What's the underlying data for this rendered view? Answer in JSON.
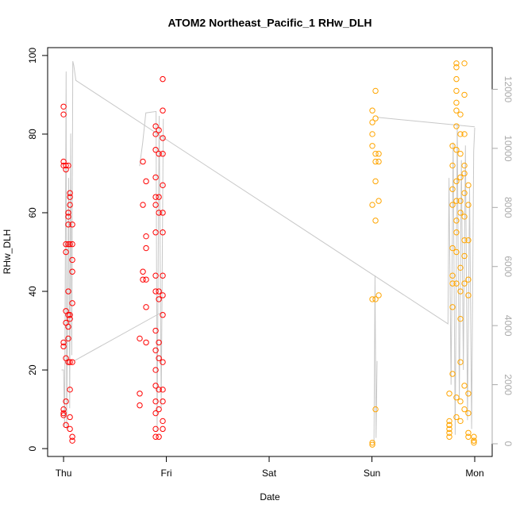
{
  "chart_data": {
    "type": "scatter",
    "title": "ATOM2 Northeast_Pacific_1 RHw_DLH",
    "x_label": "Date",
    "y_label": "RHw_DLH",
    "xlim": [
      -0.155,
      4.17
    ],
    "xticks": [
      {
        "value": 0,
        "label": "Thu"
      },
      {
        "value": 1,
        "label": "Fri"
      },
      {
        "value": 2,
        "label": "Sat"
      },
      {
        "value": 3,
        "label": "Sun"
      },
      {
        "value": 4,
        "label": "Mon"
      }
    ],
    "ylim": [
      -2,
      102
    ],
    "yticks": [
      0,
      20,
      40,
      60,
      80,
      100
    ],
    "y2lim": [
      -430,
      13410
    ],
    "y2ticks": [
      0,
      2000,
      4000,
      6000,
      8000,
      10000,
      12000
    ],
    "series": [
      {
        "color": "#ff0000",
        "x": [
          0,
          0,
          0,
          0,
          0,
          0,
          0,
          0,
          0,
          0.023,
          0.023,
          0.023,
          0.023,
          0.023,
          0.023,
          0.023,
          0.023,
          0.023,
          0.046,
          0.046,
          0.046,
          0.046,
          0.046,
          0.046,
          0.046,
          0.046,
          0.046,
          0.046,
          0.062,
          0.062,
          0.062,
          0.062,
          0.062,
          0.062,
          0.062,
          0.062,
          0.062,
          0.062,
          0.085,
          0.085,
          0.085,
          0.085,
          0.085,
          0.085,
          0.085,
          0.085,
          0.741,
          0.741,
          0.741,
          0.772,
          0.772,
          0.772,
          0.772,
          0.803,
          0.803,
          0.803,
          0.803,
          0.803,
          0.803,
          0.896,
          0.896,
          0.896,
          0.896,
          0.896,
          0.896,
          0.896,
          0.896,
          0.896,
          0.896,
          0.896,
          0.896,
          0.896,
          0.896,
          0.896,
          0.896,
          0.896,
          0.927,
          0.927,
          0.927,
          0.927,
          0.927,
          0.927,
          0.927,
          0.927,
          0.927,
          0.927,
          0.927,
          0.965,
          0.965,
          0.965,
          0.965,
          0.965,
          0.965,
          0.965,
          0.965,
          0.965,
          0.965,
          0.965,
          0.965,
          0.965,
          0.965,
          0.965
        ],
        "values": [
          87,
          85,
          73,
          72,
          9,
          8.5,
          10,
          26,
          27,
          72,
          71,
          52,
          50,
          35,
          32,
          23,
          12,
          6,
          72,
          60,
          59,
          57,
          52,
          40,
          34,
          31,
          28,
          22,
          65,
          64,
          62,
          52,
          34,
          33,
          22,
          15,
          8,
          5,
          57,
          52,
          48,
          45,
          37,
          22,
          3,
          2,
          14,
          11,
          28,
          62,
          73,
          45,
          43,
          68,
          54,
          51,
          43,
          27,
          36,
          82,
          80,
          76,
          69,
          64,
          62,
          55,
          44,
          40,
          30,
          25,
          20,
          16,
          12,
          9,
          5,
          3,
          81,
          75,
          64,
          60,
          40,
          38,
          27,
          23,
          15,
          10,
          3,
          94,
          86,
          79,
          75,
          67,
          60,
          55,
          44,
          39,
          34,
          22,
          15,
          12,
          7,
          5
        ]
      },
      {
        "color": "#ffa500",
        "x": [
          3.004,
          3.004,
          3.004,
          3.004,
          3.004,
          3.004,
          3.004,
          3.004,
          3.035,
          3.035,
          3.035,
          3.035,
          3.035,
          3.035,
          3.035,
          3.035,
          3.066,
          3.066,
          3.066,
          3.066,
          3.753,
          3.753,
          3.753,
          3.753,
          3.753,
          3.753,
          3.753,
          3.784,
          3.784,
          3.784,
          3.784,
          3.784,
          3.784,
          3.784,
          3.784,
          3.784,
          3.822,
          3.822,
          3.822,
          3.822,
          3.822,
          3.822,
          3.822,
          3.822,
          3.822,
          3.822,
          3.822,
          3.822,
          3.822,
          3.822,
          3.822,
          3.822,
          3.861,
          3.861,
          3.861,
          3.861,
          3.861,
          3.861,
          3.861,
          3.861,
          3.861,
          3.861,
          3.861,
          3.861,
          3.9,
          3.9,
          3.9,
          3.9,
          3.9,
          3.9,
          3.9,
          3.9,
          3.9,
          3.9,
          3.9,
          3.9,
          3.938,
          3.938,
          3.938,
          3.938,
          3.938,
          3.938,
          3.938,
          3.938,
          3.938,
          3.992,
          3.992,
          3.992,
          3.992
        ],
        "values": [
          1.5,
          1,
          38,
          62,
          77,
          80,
          83,
          86,
          91,
          84,
          75,
          73,
          68,
          58,
          38,
          10,
          75,
          73,
          63,
          39,
          14,
          7,
          6,
          4,
          3,
          5,
          6,
          77,
          72,
          66,
          62,
          51,
          44,
          42,
          36,
          19,
          98,
          97,
          94,
          91,
          88,
          86,
          82,
          76,
          68,
          63,
          58,
          55,
          50,
          42,
          13,
          8,
          85,
          80,
          75,
          69,
          63,
          60,
          46,
          40,
          33,
          22,
          12,
          7,
          98,
          90,
          80,
          72,
          70,
          65,
          59,
          53,
          49,
          42,
          16,
          10,
          67,
          62,
          53,
          43,
          39,
          14,
          9,
          4,
          3,
          3,
          2,
          1.5,
          2
        ]
      },
      {
        "color": "#c8c8c8",
        "type": "line",
        "axis": "y2",
        "x": [
          -0.02,
          0,
          0.01,
          0.025,
          0.03,
          0.05,
          0.06,
          0.07,
          0.08,
          0.09,
          0.1,
          0.12,
          3.74,
          3.75,
          3.77,
          3.79,
          3.81,
          3.83,
          3.85,
          3.87,
          3.89,
          3.91,
          3.93,
          3.95,
          3.97,
          3.99,
          4.0,
          null,
          3.05,
          4.0,
          null,
          3.02,
          3.03,
          3.04,
          3.05,
          null,
          0.1,
          0.96,
          null,
          0.74,
          0.77,
          0.8,
          0.9,
          0.91,
          0.93,
          0.95,
          0.97
        ],
        "values": [
          2500,
          2500,
          600,
          12600,
          500,
          9000,
          1200,
          10500,
          3000,
          12950,
          12800,
          12300,
          4060,
          9000,
          2000,
          10200,
          300,
          10800,
          1500,
          9600,
          2500,
          10100,
          800,
          8700,
          500,
          9900,
          10700,
          null,
          11050,
          10730,
          null,
          0,
          5700,
          200,
          2800,
          null,
          2800,
          4460,
          null,
          9400,
          10200,
          11200,
          11250,
          400,
          11100,
          1200,
          11000
        ]
      }
    ]
  }
}
